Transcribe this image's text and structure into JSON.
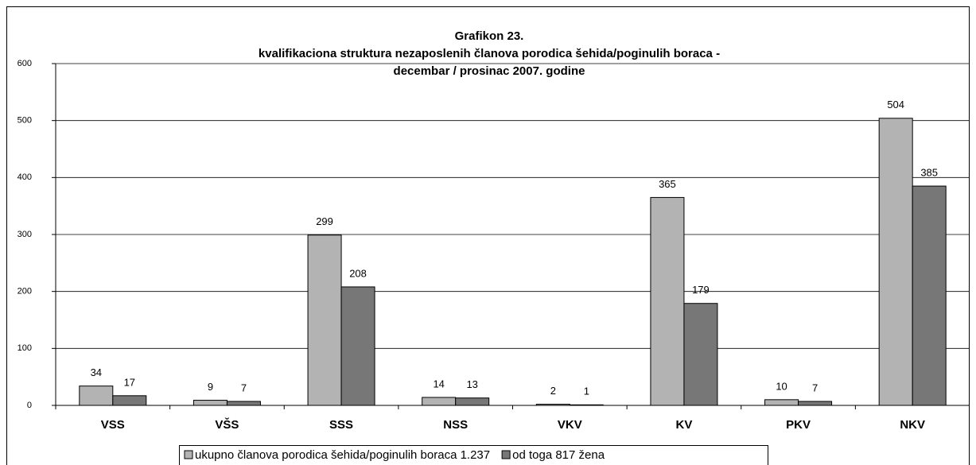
{
  "chart_data": {
    "type": "bar",
    "title": [
      "Grafikon 23.",
      "kvalifikaciona struktura nezaposlenih članova porodica šehida/poginulih boraca  -",
      "decembar / prosinac  2007. godine"
    ],
    "categories": [
      "VSS",
      "VŠS",
      "SSS",
      "NSS",
      "VKV",
      "KV",
      "PKV",
      "NKV"
    ],
    "series": [
      {
        "name": "ukupno članova porodica šehida/poginulih boraca 1.237",
        "color": "#b3b3b3",
        "values": [
          34,
          9,
          299,
          14,
          2,
          365,
          10,
          504
        ]
      },
      {
        "name": "od toga 817 žena",
        "color": "#777777",
        "values": [
          17,
          7,
          208,
          13,
          1,
          179,
          7,
          385
        ]
      }
    ],
    "ylim": [
      0,
      600
    ],
    "yticks": [
      0,
      100,
      200,
      300,
      400,
      500,
      600
    ],
    "grid": true,
    "legend": "bottom"
  }
}
